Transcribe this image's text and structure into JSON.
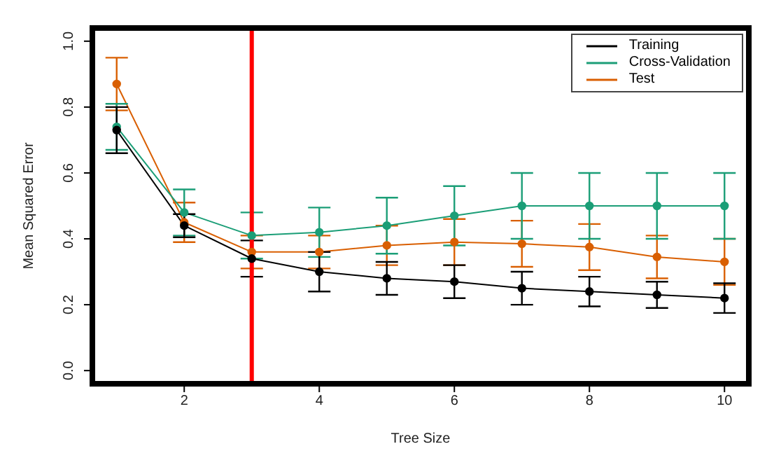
{
  "chart_data": {
    "type": "line",
    "xlabel": "Tree Size",
    "ylabel": "Mean Squared Error",
    "x": [
      1,
      2,
      3,
      4,
      5,
      6,
      7,
      8,
      9,
      10
    ],
    "series": [
      {
        "name": "Training",
        "color": "#000000",
        "values": [
          0.73,
          0.44,
          0.34,
          0.3,
          0.28,
          0.27,
          0.25,
          0.24,
          0.23,
          0.22
        ],
        "errors": [
          0.07,
          0.035,
          0.055,
          0.06,
          0.05,
          0.05,
          0.05,
          0.045,
          0.04,
          0.045
        ]
      },
      {
        "name": "Cross-Validation",
        "color": "#1b9e77",
        "values": [
          0.74,
          0.48,
          0.41,
          0.42,
          0.44,
          0.47,
          0.5,
          0.5,
          0.5,
          0.5
        ],
        "errors": [
          0.07,
          0.07,
          0.07,
          0.075,
          0.085,
          0.09,
          0.1,
          0.1,
          0.1,
          0.1
        ]
      },
      {
        "name": "Test",
        "color": "#d95f02",
        "values": [
          0.87,
          0.45,
          0.36,
          0.36,
          0.38,
          0.39,
          0.385,
          0.375,
          0.345,
          0.33
        ],
        "errors": [
          0.08,
          0.06,
          0.05,
          0.05,
          0.06,
          0.07,
          0.07,
          0.07,
          0.065,
          0.07
        ]
      }
    ],
    "xlim": [
      0.64,
      10.36
    ],
    "xticks": [
      2,
      4,
      6,
      8,
      10
    ],
    "ylim": [
      -0.04,
      1.04
    ],
    "yticks": [
      {
        "value": 0,
        "label": "0.0"
      },
      0.2,
      0.4,
      0.6,
      0.8,
      {
        "value": 1,
        "label": "1.0"
      }
    ],
    "ref_lines": [
      {
        "axis": "x",
        "value": 3,
        "color": "#ff0000"
      }
    ],
    "grid": false,
    "legend": "top right",
    "marker": "circle",
    "line_style": "solid"
  }
}
